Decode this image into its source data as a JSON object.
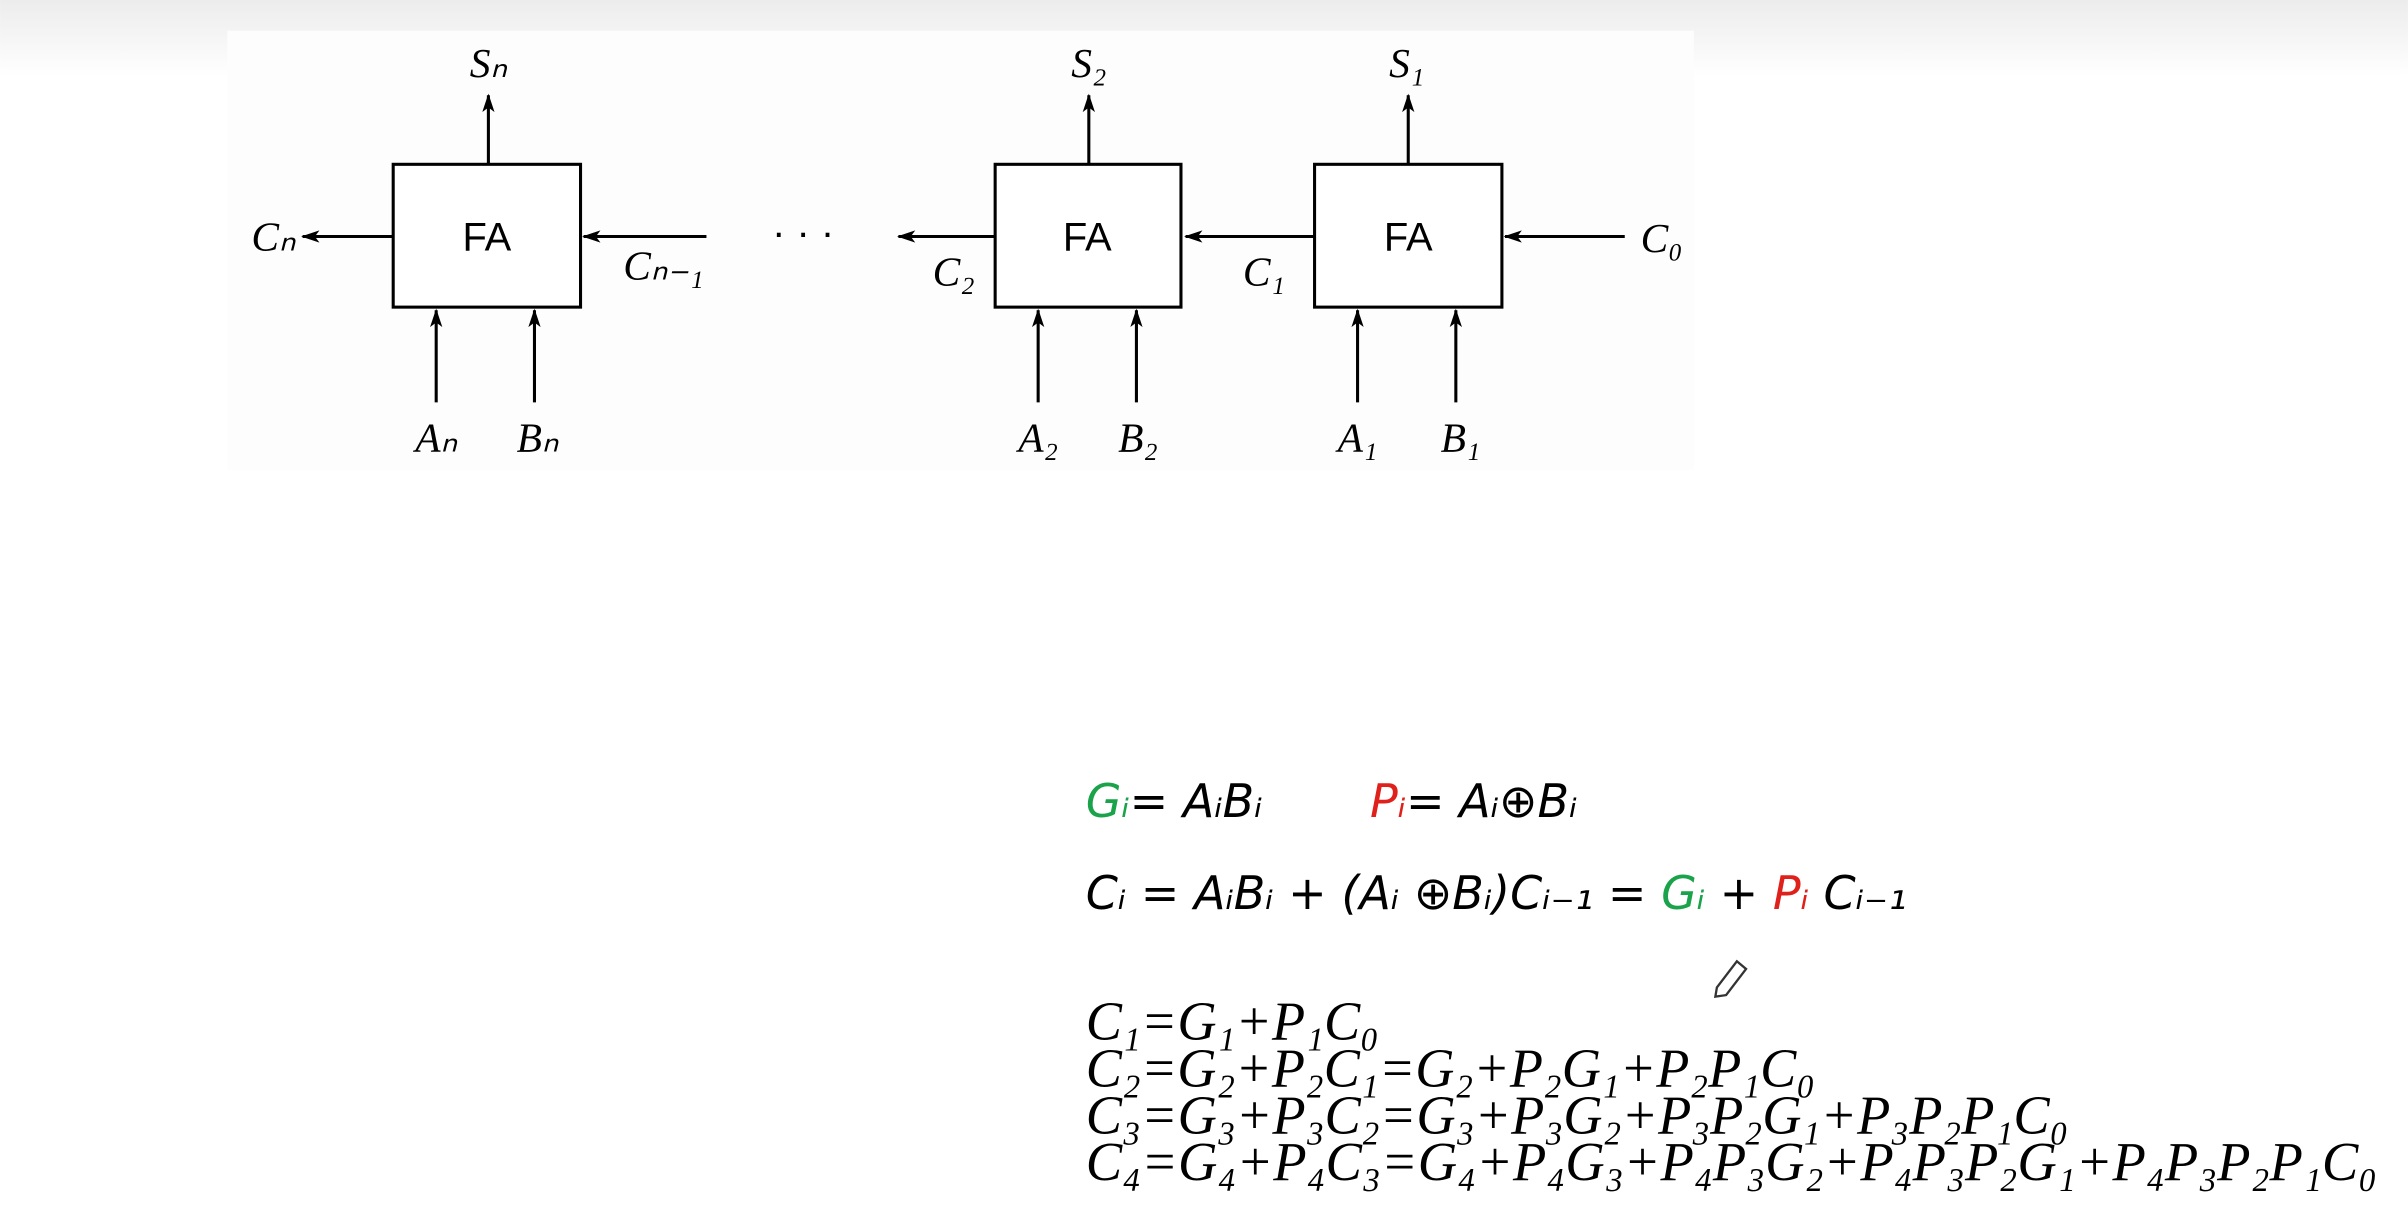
{
  "diagram": {
    "blocks": [
      {
        "label": "FA",
        "sum": "Sₙ",
        "a": "Aₙ",
        "b": "Bₙ"
      },
      {
        "label": "FA",
        "sum": "S₂",
        "a": "A₂",
        "b": "B₂"
      },
      {
        "label": "FA",
        "sum": "S₁",
        "a": "A₁",
        "b": "B₁"
      }
    ],
    "carries": [
      "Cₙ",
      "Cₙ₋₁",
      "C₂",
      "C₁",
      "C₀"
    ],
    "ellipsis": "· · ·"
  },
  "formulas": {
    "definitions": [
      {
        "text": "Gᵢ",
        "color": "#1aa34a"
      },
      {
        "text": "= AᵢBᵢ"
      },
      {
        "text": "Pᵢ",
        "color": "#e0201b"
      },
      {
        "text": "= Aᵢ⊕Bᵢ"
      }
    ],
    "carry": [
      {
        "text": "Cᵢ = AᵢBᵢ + (Aᵢ ⊕Bᵢ)Cᵢ₋₁ = "
      },
      {
        "text": "Gᵢ",
        "color": "#1aa34a"
      },
      {
        "text": " + "
      },
      {
        "text": "Pᵢ",
        "color": "#e0201b"
      },
      {
        "text": " Cᵢ₋₁"
      }
    ],
    "expansions": [
      "C₁=G₁+P₁C₀",
      "C₂=G₂+P₂C₁=G₂+P₂G₁+P₂P₁C₀",
      "C₃=G₃+P₃C₂=G₃+P₃G₂+P₃P₂G₁+P₃P₂P₁C₀",
      "C₄=G₄+P₄C₃=G₄+P₄G₃+P₄P₃G₂+P₄P₃P₂G₁+P₄P₃P₂P₁C₀"
    ]
  }
}
